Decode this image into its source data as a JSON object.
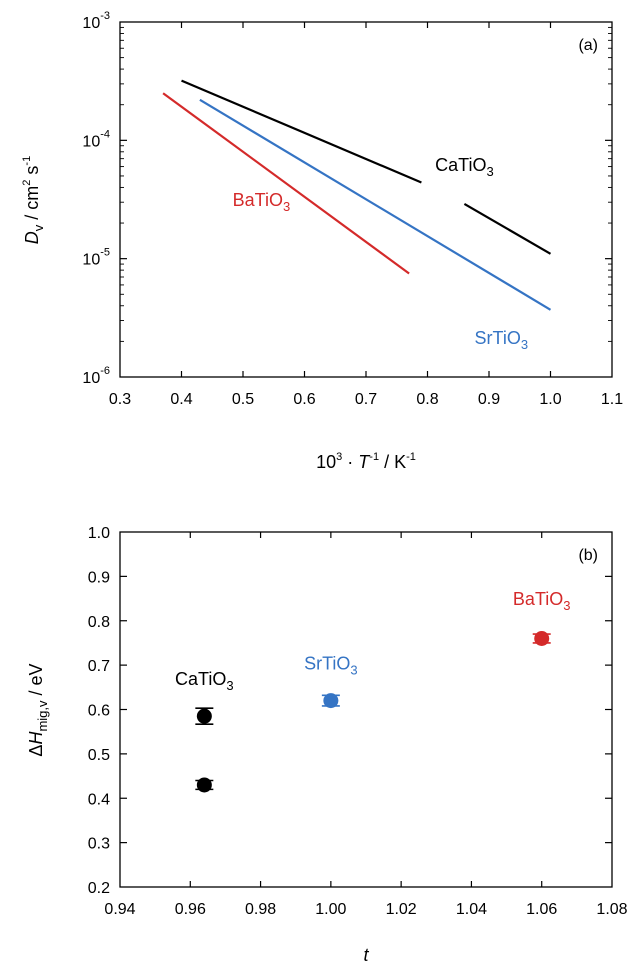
{
  "chart_data": [
    {
      "panel": "(a)",
      "type": "line",
      "xlabel": {
        "main": "10",
        "sup1": "3",
        "mid": " · ",
        "var": "T",
        "sup2": "-1",
        "unit": " / K",
        "sup3": "-1"
      },
      "ylabel": {
        "var": "D",
        "sub": "v",
        "unit": " / cm",
        "sup1": "2",
        "unit2": " s",
        "sup2": "-1"
      },
      "xlim": [
        0.3,
        1.1
      ],
      "ylim": [
        1e-06,
        0.001
      ],
      "yscale": "log",
      "xticks": [
        "0.3",
        "0.4",
        "0.5",
        "0.6",
        "0.7",
        "0.8",
        "0.9",
        "1.0",
        "1.1"
      ],
      "yticks": [
        {
          "base": "10",
          "exp": "-6",
          "value": 1e-06
        },
        {
          "base": "10",
          "exp": "-5",
          "value": 1e-05
        },
        {
          "base": "10",
          "exp": "-4",
          "value": 0.0001
        },
        {
          "base": "10",
          "exp": "-3",
          "value": 0.001
        }
      ],
      "series": [
        {
          "name": "CaTiO3",
          "label_main": "CaTiO",
          "label_sub": "3",
          "color": "#000000",
          "segments": [
            [
              [
                0.4,
                0.00032
              ],
              [
                0.79,
                4.4e-05
              ]
            ],
            [
              [
                0.86,
                2.9e-05
              ],
              [
                1.0,
                1.1e-05
              ]
            ]
          ],
          "label_at": [
            0.86,
            5.5e-05
          ]
        },
        {
          "name": "BaTiO3",
          "label_main": "BaTiO",
          "label_sub": "3",
          "color": "#d42a2a",
          "segments": [
            [
              [
                0.37,
                0.00025
              ],
              [
                0.77,
                7.5e-06
              ]
            ]
          ],
          "label_at": [
            0.53,
            2.8e-05
          ]
        },
        {
          "name": "SrTiO3",
          "label_main": "SrTiO",
          "label_sub": "3",
          "color": "#3574c4",
          "segments": [
            [
              [
                0.43,
                0.00022
              ],
              [
                1.0,
                3.7e-06
              ]
            ]
          ],
          "label_at": [
            0.92,
            1.9e-06
          ]
        }
      ]
    },
    {
      "panel": "(b)",
      "type": "scatter",
      "xlabel": {
        "var": "t"
      },
      "ylabel": {
        "pre": "Δ",
        "var": "H",
        "sub": "mig,v",
        "unit": " / eV"
      },
      "xlim": [
        0.94,
        1.08
      ],
      "ylim": [
        0.2,
        1.0
      ],
      "xticks": [
        "0.94",
        "0.96",
        "0.98",
        "1.00",
        "1.02",
        "1.04",
        "1.06",
        "1.08"
      ],
      "yticks": [
        "0.2",
        "0.3",
        "0.4",
        "0.5",
        "0.6",
        "0.7",
        "0.8",
        "0.9",
        "1.0"
      ],
      "points": [
        {
          "name": "CaTiO3",
          "x": 0.964,
          "y": 0.585,
          "err": 0.018,
          "color": "#000000"
        },
        {
          "name": "CaTiO3",
          "x": 0.964,
          "y": 0.43,
          "err": 0.01,
          "color": "#000000"
        },
        {
          "name": "SrTiO3",
          "x": 1.0,
          "y": 0.62,
          "err": 0.012,
          "color": "#3574c4"
        },
        {
          "name": "BaTiO3",
          "x": 1.06,
          "y": 0.76,
          "err": 0.01,
          "color": "#d42a2a"
        }
      ],
      "labels": [
        {
          "main": "CaTiO",
          "sub": "3",
          "x": 0.964,
          "y": 0.655,
          "color": "#000000"
        },
        {
          "main": "SrTiO",
          "sub": "3",
          "x": 1.0,
          "y": 0.69,
          "color": "#3574c4"
        },
        {
          "main": "BaTiO",
          "sub": "3",
          "x": 1.06,
          "y": 0.835,
          "color": "#d42a2a"
        }
      ]
    }
  ]
}
